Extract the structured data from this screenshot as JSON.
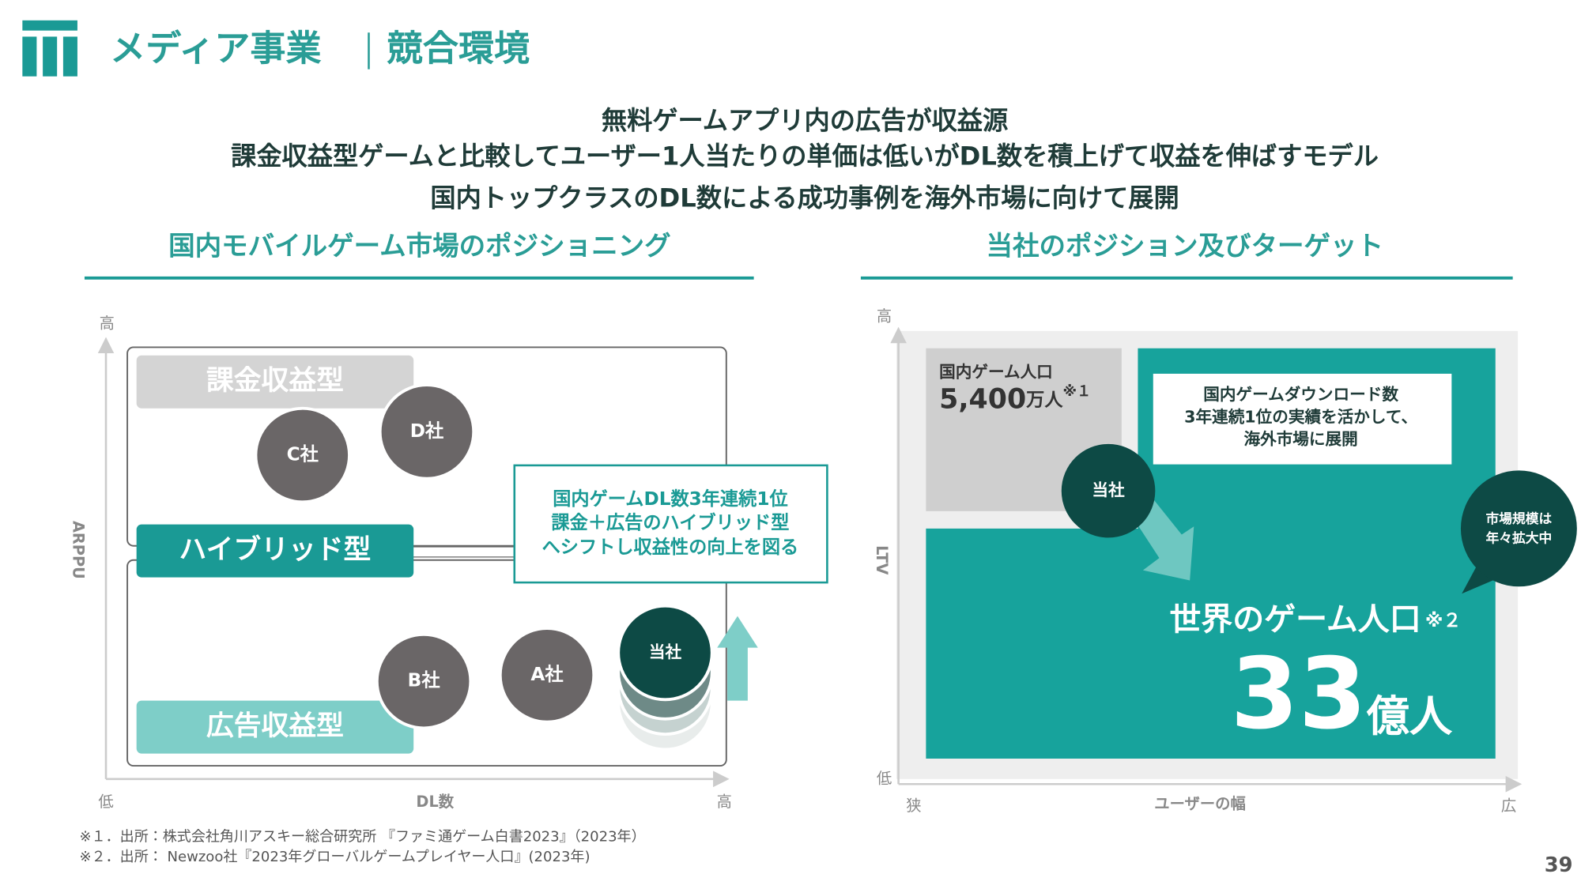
{
  "header": {
    "title": "メディア事業",
    "subtitle": "競合環境"
  },
  "headline": [
    "無料ゲームアプリ内の広告が収益源",
    "課金収益型ゲームと比較してユーザー1人当たりの単価は低いがDL数を積上げて収益を伸ばすモデル",
    "国内トップクラスのDL数による成功事例を海外市場に向けて展開"
  ],
  "left": {
    "title": "国内モバイルゲーム市場のポジショニング",
    "y_axis": "ARPPU",
    "y_high": "高",
    "x_low": "低",
    "x_axis": "DL数",
    "x_high": "高",
    "categories": [
      "課金収益型",
      "ハイブリッド型",
      "広告収益型"
    ],
    "companies": [
      "C社",
      "D社",
      "B社",
      "A社",
      "当社"
    ],
    "callout": [
      "国内ゲームDL数3年連続1位",
      "課金＋広告のハイブリッド型",
      "へシフトし収益性の向上を図る"
    ]
  },
  "right": {
    "title": "当社のポジション及びターゲット",
    "y_axis": "LTV",
    "y_high": "高",
    "y_low": "低",
    "x_low": "狭",
    "x_axis": "ユーザーの幅",
    "x_high": "広",
    "domestic": {
      "label": "国内ゲーム人口",
      "value": "5,400",
      "unit": "万人",
      "note": "※１"
    },
    "callout": [
      "国内ゲームダウンロード数",
      "3年連続1位の実績を活かして、",
      "海外市場に展開"
    ],
    "company": "当社",
    "bubble": [
      "市場規模は",
      "年々拡大中"
    ],
    "world": {
      "label": "世界のゲーム人口",
      "note": "※２",
      "value": "33",
      "unit": "億人"
    }
  },
  "footnotes": [
    "※１．出所：株式会社角川アスキー総合研究所 『ファミ通ゲーム白書2023』（2023年）",
    "※２．出所： Newzoo社『2023年グローバルゲームプレイヤー人口』(2023年)"
  ],
  "page_number": "39"
}
